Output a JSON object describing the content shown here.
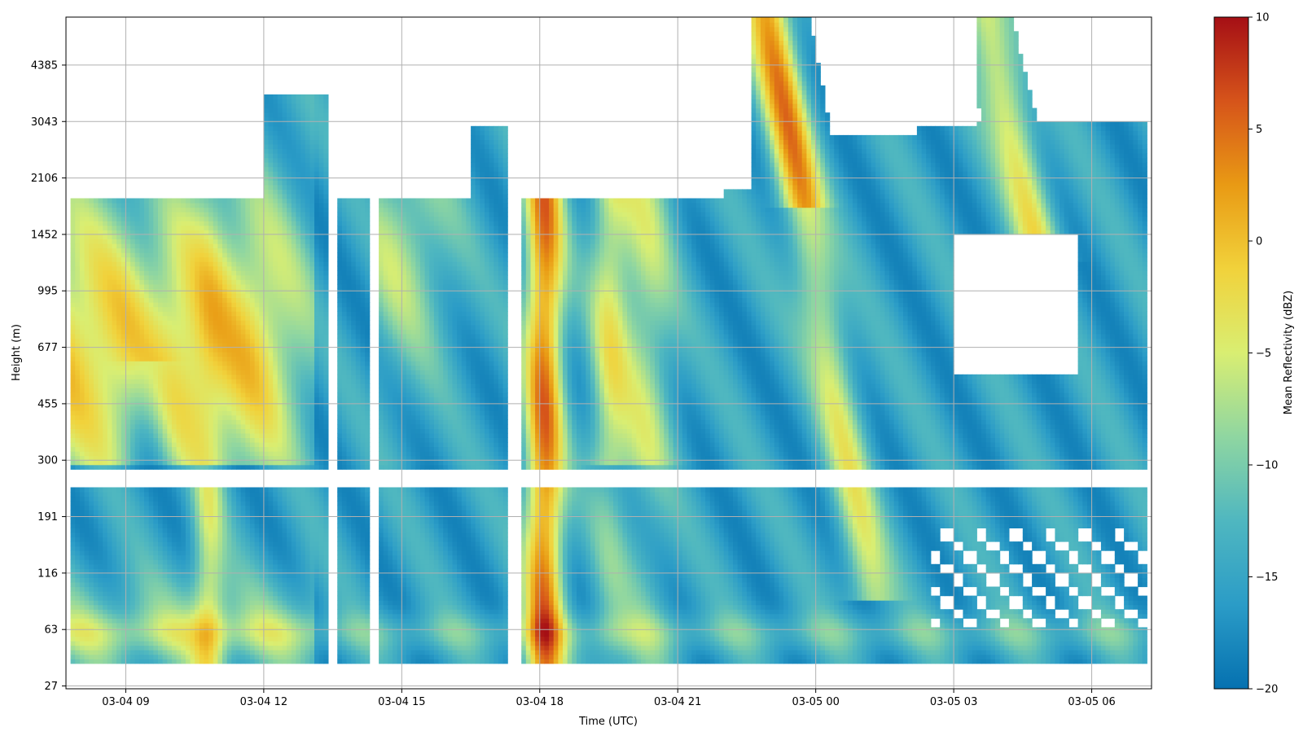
{
  "chart_data": {
    "type": "heatmap",
    "title": "",
    "xlabel": "Time (UTC)",
    "ylabel": "Height (m)",
    "x_ticks": [
      "03-04 09",
      "03-04 12",
      "03-04 15",
      "03-04 18",
      "03-04 21",
      "03-05 00",
      "03-05 03",
      "03-05 06"
    ],
    "x_tick_hours": [
      9,
      12,
      15,
      18,
      21,
      24,
      27,
      30
    ],
    "x_range_hours": [
      7.7,
      31.3
    ],
    "y_ticks": [
      "27",
      "63",
      "116",
      "191",
      "300",
      "455",
      "677",
      "995",
      "1452",
      "2106",
      "3043",
      "4385"
    ],
    "y_range_index": [
      -0.05,
      11.85
    ],
    "y_scale": "non-linear (tick labels evenly spaced)",
    "grid": true,
    "colorbar": {
      "label": "Mean Reflectivity (dBZ)",
      "min": -20,
      "max": 10,
      "ticks": [
        "10",
        "5",
        "0",
        "−5",
        "−10",
        "−15",
        "−20"
      ],
      "tick_values": [
        10,
        5,
        0,
        -5,
        -10,
        -15,
        -20
      ],
      "colormap": [
        "#0571b0",
        "#2b9cc7",
        "#4fb7c0",
        "#8fd6a1",
        "#d9ee72",
        "#f1d23b",
        "#e99a14",
        "#d6541a",
        "#a50f15"
      ]
    },
    "data_gaps": {
      "empty_height_band_between_index": [
        3.52,
        3.82
      ],
      "empty_time_gaps_hours": [
        [
          13.4,
          13.6
        ],
        [
          14.3,
          14.5
        ],
        [
          17.3,
          17.6
        ]
      ]
    },
    "features": [
      {
        "name": "strong echo low layer",
        "time_hours": [
          7.8,
          13.0
        ],
        "height_index": [
          4.0,
          8.6
        ],
        "dbz": 3
      },
      {
        "name": "strong echo column",
        "time_hours": [
          17.7,
          18.5
        ],
        "height_index": [
          0.4,
          8.6
        ],
        "dbz": 4
      },
      {
        "name": "descending feature",
        "time_hours": [
          22.8,
          25.5
        ],
        "height_index": [
          1.5,
          11.8
        ],
        "dbz": 4
      },
      {
        "name": "upper descending feature",
        "time_hours": [
          27.5,
          30.0
        ],
        "height_index": [
          8.0,
          11.5
        ],
        "dbz": 0
      }
    ]
  }
}
